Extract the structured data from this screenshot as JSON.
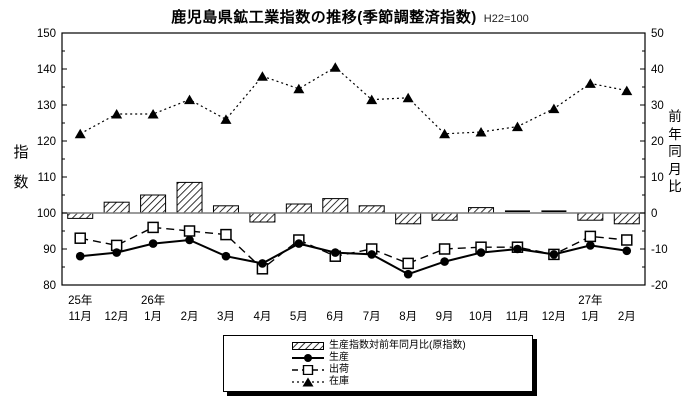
{
  "title": "鹿児島県鉱工業指数の推移(季節調整済指数)",
  "subtitle": "H22=100",
  "left_axis_title": "指数",
  "right_axis_title": "前年同月比",
  "legend": {
    "bar": "生産指数対前年同月比(原指数)",
    "production": "生産",
    "shipment": "出荷",
    "inventory": "在庫"
  },
  "chart_data": {
    "type": "mixed-bar-line",
    "x_months": [
      "11月",
      "12月",
      "1月",
      "2月",
      "3月",
      "4月",
      "5月",
      "6月",
      "7月",
      "8月",
      "9月",
      "10月",
      "11月",
      "12月",
      "1月",
      "2月"
    ],
    "year_labels": [
      {
        "label": "25年",
        "month_index": 0
      },
      {
        "label": "26年",
        "month_index": 2
      },
      {
        "label": "27年",
        "month_index": 14
      }
    ],
    "left_axis": {
      "title": "指数",
      "min": 80,
      "max": 150,
      "ticks": [
        150,
        140,
        130,
        120,
        110,
        100,
        90,
        80
      ]
    },
    "right_axis": {
      "title": "前年同月比",
      "min": -20,
      "max": 50,
      "ticks": [
        50,
        40,
        30,
        20,
        10,
        0,
        -10,
        -20
      ]
    },
    "grid": false,
    "legend_position": "bottom",
    "series": [
      {
        "name": "生産指数対前年同月比(原指数)",
        "type": "bar",
        "fill": "hatch",
        "axis": "right",
        "values": [
          -1.5,
          3,
          5,
          8.5,
          2,
          -2.5,
          2.5,
          4,
          2,
          -3,
          -2,
          1.5,
          0.5,
          0.5,
          -2,
          -3
        ]
      },
      {
        "name": "生産",
        "type": "line",
        "style": "solid",
        "marker": "circle",
        "axis": "left",
        "values": [
          88,
          89,
          91.5,
          92.5,
          88,
          86,
          91.5,
          89,
          88.5,
          83,
          86.5,
          89,
          90,
          88.5,
          91,
          89.5
        ]
      },
      {
        "name": "出荷",
        "type": "line",
        "style": "dashed",
        "marker": "square",
        "axis": "left",
        "values": [
          93,
          91,
          96,
          95,
          94,
          84.5,
          92.5,
          88,
          90,
          86,
          90,
          90.5,
          90.5,
          88.5,
          93.5,
          92.5
        ]
      },
      {
        "name": "在庫",
        "type": "line",
        "style": "dotted",
        "marker": "triangle",
        "axis": "left",
        "values": [
          122,
          127.5,
          127.5,
          131.5,
          126,
          138,
          134.5,
          140.5,
          131.5,
          132,
          122,
          122.5,
          124,
          129,
          136,
          134
        ]
      }
    ],
    "colors": {
      "foreground": "#000000",
      "zero_line": "#7a7a7a",
      "background": "#ffffff"
    }
  }
}
